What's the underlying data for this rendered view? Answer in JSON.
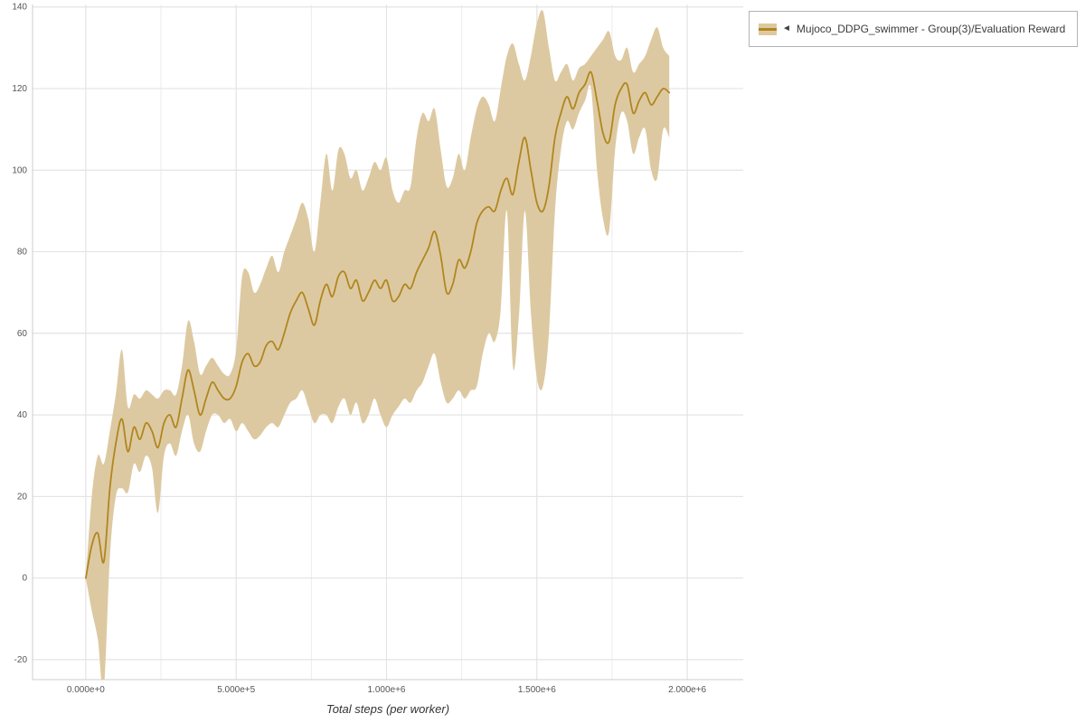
{
  "legend": {
    "entries": [
      {
        "arrow": "◄",
        "label": "Mujoco_DDPG_swimmer - Group(3)/Evaluation Reward"
      }
    ]
  },
  "chart_data": {
    "type": "line",
    "title": "",
    "xlabel": "Total steps (per worker)",
    "ylabel": "",
    "xlim": [
      -177000,
      2186000
    ],
    "ylim": [
      -24.9,
      140.6
    ],
    "grid": true,
    "legend_position": "top-right",
    "x_ticks": [
      {
        "value": 0,
        "label": "0.000e+0"
      },
      {
        "value": 500000,
        "label": "5.000e+5"
      },
      {
        "value": 1000000,
        "label": "1.000e+6"
      },
      {
        "value": 1500000,
        "label": "1.500e+6"
      },
      {
        "value": 2000000,
        "label": "2.000e+6"
      }
    ],
    "y_ticks": [
      {
        "value": -20,
        "label": "-20"
      },
      {
        "value": 0,
        "label": "0"
      },
      {
        "value": 20,
        "label": "20"
      },
      {
        "value": 40,
        "label": "40"
      },
      {
        "value": 60,
        "label": "60"
      },
      {
        "value": 80,
        "label": "80"
      },
      {
        "value": 100,
        "label": "100"
      },
      {
        "value": 120,
        "label": "120"
      },
      {
        "value": 140,
        "label": "140"
      }
    ],
    "grid_x_values": [
      0,
      250000,
      500000,
      750000,
      1000000,
      1250000,
      1500000,
      1750000,
      2000000
    ],
    "grid_y_values": [
      -20,
      0,
      20,
      40,
      60,
      80,
      100,
      120,
      140
    ],
    "series": [
      {
        "name": "Mujoco_DDPG_swimmer - Group(3)/Evaluation Reward",
        "line_color": "#b0861f",
        "band_color": "#ddc9a1",
        "x": [
          0,
          20000,
          40000,
          60000,
          80000,
          100000,
          120000,
          140000,
          160000,
          180000,
          200000,
          220000,
          240000,
          260000,
          280000,
          300000,
          320000,
          340000,
          360000,
          380000,
          400000,
          420000,
          440000,
          460000,
          480000,
          500000,
          520000,
          540000,
          560000,
          580000,
          600000,
          620000,
          640000,
          660000,
          680000,
          700000,
          720000,
          740000,
          760000,
          780000,
          800000,
          820000,
          840000,
          860000,
          880000,
          900000,
          920000,
          940000,
          960000,
          980000,
          1000000,
          1020000,
          1040000,
          1060000,
          1080000,
          1100000,
          1120000,
          1140000,
          1160000,
          1180000,
          1200000,
          1220000,
          1240000,
          1260000,
          1280000,
          1300000,
          1320000,
          1340000,
          1360000,
          1380000,
          1400000,
          1420000,
          1440000,
          1460000,
          1480000,
          1500000,
          1520000,
          1540000,
          1560000,
          1580000,
          1600000,
          1620000,
          1640000,
          1660000,
          1680000,
          1700000,
          1720000,
          1740000,
          1760000,
          1780000,
          1800000,
          1820000,
          1840000,
          1860000,
          1880000,
          1900000,
          1920000,
          1940000
        ],
        "mean": [
          0,
          8,
          11,
          4,
          22,
          33,
          39,
          31,
          37,
          34,
          38,
          36,
          32,
          38,
          40,
          37,
          44,
          51,
          46,
          40,
          44,
          48,
          46,
          44,
          44,
          47,
          53,
          55,
          52,
          53,
          57,
          58,
          56,
          60,
          65,
          68,
          70,
          66,
          62,
          68,
          72,
          69,
          74,
          75,
          71,
          73,
          68,
          70,
          73,
          71,
          73,
          68,
          69,
          72,
          71,
          75,
          78,
          81,
          85,
          79,
          70,
          72,
          78,
          76,
          80,
          87,
          90,
          91,
          90,
          95,
          98,
          94,
          102,
          108,
          100,
          92,
          90,
          96,
          108,
          114,
          118,
          115,
          119,
          121,
          124,
          117,
          109,
          107,
          116,
          120,
          121,
          114,
          117,
          119,
          116,
          118,
          120,
          119
        ],
        "lower": [
          0,
          -8,
          -15,
          -27,
          5,
          20,
          22,
          21,
          28,
          26,
          30,
          27,
          16,
          30,
          33,
          30,
          36,
          40,
          33,
          31,
          36,
          40,
          40,
          38,
          39,
          36,
          38,
          36,
          34,
          35,
          37,
          38,
          37,
          40,
          43,
          44,
          46,
          42,
          38,
          40,
          40,
          38,
          42,
          44,
          40,
          43,
          38,
          40,
          44,
          40,
          37,
          40,
          42,
          44,
          43,
          46,
          48,
          52,
          55,
          48,
          43,
          44,
          46,
          44,
          46,
          47,
          55,
          60,
          58,
          66,
          90,
          52,
          64,
          90,
          65,
          49,
          47,
          60,
          90,
          105,
          112,
          110,
          114,
          117,
          120,
          100,
          88,
          85,
          105,
          114,
          112,
          104,
          108,
          110,
          100,
          98,
          110,
          108
        ],
        "upper": [
          0,
          20,
          30,
          28,
          36,
          45,
          56,
          42,
          45,
          44,
          46,
          45,
          44,
          46,
          46,
          45,
          52,
          63,
          58,
          50,
          52,
          54,
          52,
          50,
          50,
          56,
          74,
          75,
          70,
          72,
          76,
          79,
          75,
          80,
          84,
          88,
          92,
          88,
          80,
          92,
          104,
          95,
          105,
          104,
          98,
          100,
          95,
          98,
          102,
          100,
          103,
          95,
          92,
          95,
          96,
          108,
          114,
          112,
          115,
          105,
          96,
          98,
          104,
          100,
          108,
          115,
          118,
          116,
          112,
          120,
          128,
          131,
          126,
          122,
          128,
          136,
          139,
          130,
          122,
          124,
          126,
          122,
          125,
          126,
          128,
          130,
          132,
          134,
          128,
          127,
          130,
          124,
          126,
          128,
          132,
          135,
          130,
          128
        ]
      }
    ]
  }
}
